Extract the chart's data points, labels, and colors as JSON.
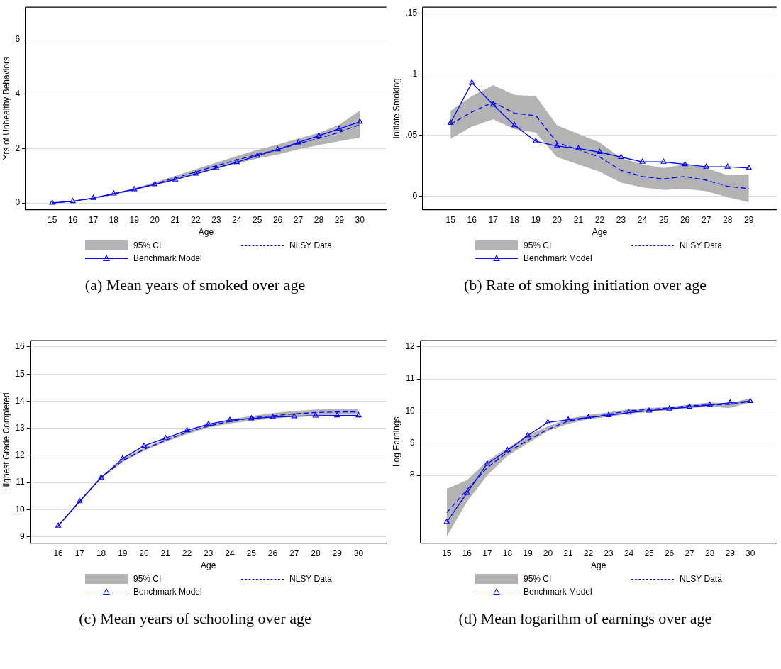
{
  "chart_data": [
    {
      "type": "line",
      "xlabel": "Age",
      "ylabel": "Yrs of Unhealthy Behaviors",
      "annotations": [
        "95% CI",
        "(a) Mean years of smoked over age"
      ],
      "x": [
        15,
        16,
        17,
        18,
        19,
        20,
        21,
        22,
        23,
        24,
        25,
        26,
        27,
        28,
        29,
        30
      ],
      "xlim": [
        13.7,
        31.3
      ],
      "xticks": [
        15,
        16,
        17,
        18,
        19,
        20,
        21,
        22,
        23,
        24,
        25,
        26,
        27,
        28,
        29,
        30
      ],
      "ylim": [
        -0.24,
        7.2
      ],
      "yticks": [
        0,
        2,
        4,
        6
      ],
      "grid": "y",
      "legend": "bottom",
      "series": [
        {
          "name": "NLSY Data",
          "color": "#0000ff",
          "line_style": "dashed",
          "marker": "none",
          "values": [
            0,
            0.06,
            0.17,
            0.32,
            0.5,
            0.7,
            0.92,
            1.14,
            1.37,
            1.58,
            1.78,
            1.96,
            2.18,
            2.37,
            2.6,
            2.88
          ],
          "lower": [
            0,
            0.05,
            0.15,
            0.3,
            0.46,
            0.65,
            0.84,
            1.04,
            1.25,
            1.45,
            1.63,
            1.78,
            1.97,
            2.13,
            2.27,
            2.4
          ],
          "upper": [
            0,
            0.07,
            0.19,
            0.35,
            0.54,
            0.76,
            0.99,
            1.24,
            1.48,
            1.72,
            1.95,
            2.15,
            2.37,
            2.58,
            2.88,
            3.4
          ]
        },
        {
          "name": "Benchmark Model",
          "color": "#0000ff",
          "line_style": "solid",
          "marker": "triangle",
          "values": [
            0,
            0.06,
            0.18,
            0.34,
            0.5,
            0.68,
            0.86,
            1.07,
            1.28,
            1.5,
            1.73,
            1.97,
            2.22,
            2.47,
            2.73,
            2.98
          ]
        }
      ]
    },
    {
      "type": "line",
      "xlabel": "Age",
      "ylabel": "Initiate Smoking",
      "annotations": [
        "95% CI",
        "(b) Rate of smoking initiation over age"
      ],
      "x": [
        15,
        16,
        17,
        18,
        19,
        20,
        21,
        22,
        23,
        24,
        25,
        26,
        27,
        28,
        29
      ],
      "xlim": [
        13.7,
        30.3
      ],
      "xticks": [
        15,
        16,
        17,
        18,
        19,
        20,
        21,
        22,
        23,
        24,
        25,
        26,
        27,
        28,
        29
      ],
      "ylim": [
        -0.011,
        0.155
      ],
      "yticks": [
        0,
        {
          "value": 0.05,
          "label": ".05"
        },
        {
          "value": 0.1,
          "label": ".1"
        },
        {
          "value": 0.15,
          "label": ".15"
        }
      ],
      "grid": "y",
      "legend": "bottom",
      "series": [
        {
          "name": "NLSY Data",
          "color": "#0000ff",
          "line_style": "dashed",
          "marker": "none",
          "values": [
            0.059,
            0.069,
            0.077,
            0.068,
            0.066,
            0.044,
            0.038,
            0.032,
            0.021,
            0.016,
            0.014,
            0.016,
            0.013,
            0.008,
            0.006
          ],
          "lower": [
            0.047,
            0.057,
            0.063,
            0.055,
            0.052,
            0.032,
            0.026,
            0.02,
            0.011,
            0.007,
            0.005,
            0.006,
            0.004,
            -0.001,
            -0.005
          ],
          "upper": [
            0.07,
            0.082,
            0.091,
            0.083,
            0.082,
            0.058,
            0.051,
            0.044,
            0.031,
            0.026,
            0.023,
            0.026,
            0.023,
            0.017,
            0.018
          ]
        },
        {
          "name": "Benchmark Model",
          "color": "#0000ff",
          "line_style": "solid",
          "marker": "triangle",
          "values": [
            0.06,
            0.093,
            0.075,
            0.058,
            0.045,
            0.041,
            0.039,
            0.036,
            0.032,
            0.028,
            0.028,
            0.026,
            0.024,
            0.024,
            0.023
          ]
        }
      ]
    },
    {
      "type": "line",
      "xlabel": "Age",
      "ylabel": "Highest Grade Completed",
      "annotations": [
        "95% CI",
        "(c) Mean years of schooling over age"
      ],
      "x": [
        16,
        17,
        18,
        19,
        20,
        21,
        22,
        23,
        24,
        25,
        26,
        27,
        28,
        29,
        30
      ],
      "xlim": [
        14.7,
        31.3
      ],
      "xticks": [
        16,
        17,
        18,
        19,
        20,
        21,
        22,
        23,
        24,
        25,
        26,
        27,
        28,
        29,
        30
      ],
      "ylim": [
        8.77,
        16.23
      ],
      "yticks": [
        9,
        10,
        11,
        12,
        13,
        14,
        15,
        16
      ],
      "grid": "y",
      "legend": "bottom",
      "series": [
        {
          "name": "NLSY Data",
          "color": "#0000ff",
          "line_style": "dashed",
          "marker": "none",
          "values": [
            9.4,
            10.3,
            11.18,
            11.8,
            12.22,
            12.55,
            12.85,
            13.08,
            13.25,
            13.38,
            13.46,
            13.53,
            13.58,
            13.6,
            13.6
          ],
          "lower": [
            9.38,
            10.27,
            11.15,
            11.75,
            12.17,
            12.5,
            12.78,
            13.02,
            13.17,
            13.28,
            13.35,
            13.43,
            13.48,
            13.5,
            13.5
          ],
          "upper": [
            9.42,
            10.35,
            11.22,
            11.86,
            12.28,
            12.6,
            12.9,
            13.15,
            13.33,
            13.45,
            13.56,
            13.64,
            13.69,
            13.7,
            13.71
          ]
        },
        {
          "name": "Benchmark Model",
          "color": "#0000ff",
          "line_style": "solid",
          "marker": "triangle",
          "values": [
            9.4,
            10.3,
            11.18,
            11.88,
            12.35,
            12.63,
            12.92,
            13.15,
            13.3,
            13.36,
            13.41,
            13.44,
            13.46,
            13.47,
            13.47
          ]
        }
      ]
    },
    {
      "type": "line",
      "xlabel": "Age",
      "ylabel": "Log Earnings",
      "annotations": [
        "95% CI",
        "(d) Mean logarithm of earnings over age"
      ],
      "x": [
        15,
        16,
        17,
        18,
        19,
        20,
        21,
        22,
        23,
        24,
        25,
        26,
        27,
        28,
        29,
        30
      ],
      "xlim": [
        13.7,
        31.3
      ],
      "xticks": [
        15,
        16,
        17,
        18,
        19,
        20,
        21,
        22,
        23,
        24,
        25,
        26,
        27,
        28,
        29,
        30
      ],
      "ylim": [
        5.9,
        12.19
      ],
      "yticks": [
        8,
        9,
        10,
        11,
        12
      ],
      "grid": "y",
      "legend": "bottom",
      "series": [
        {
          "name": "NLSY Data",
          "color": "#0000ff",
          "line_style": "dashed",
          "marker": "none",
          "values": [
            6.84,
            7.55,
            8.24,
            8.72,
            9.09,
            9.43,
            9.69,
            9.79,
            9.9,
            10.01,
            10.05,
            10.1,
            10.17,
            10.19,
            10.21,
            10.3
          ],
          "lower": [
            6.1,
            7.18,
            8.0,
            8.6,
            9.0,
            9.38,
            9.6,
            9.75,
            9.82,
            9.92,
            9.97,
            10.03,
            10.09,
            10.13,
            10.1,
            10.27
          ],
          "upper": [
            7.58,
            7.85,
            8.45,
            8.85,
            9.23,
            9.53,
            9.76,
            9.88,
            9.96,
            10.06,
            10.1,
            10.13,
            10.2,
            10.27,
            10.24,
            10.4
          ]
        },
        {
          "name": "Benchmark Model",
          "color": "#0000ff",
          "line_style": "solid",
          "marker": "triangle",
          "values": [
            6.55,
            7.45,
            8.36,
            8.78,
            9.24,
            9.65,
            9.73,
            9.8,
            9.87,
            9.95,
            10.01,
            10.07,
            10.13,
            10.19,
            10.26,
            10.31
          ]
        }
      ]
    }
  ]
}
